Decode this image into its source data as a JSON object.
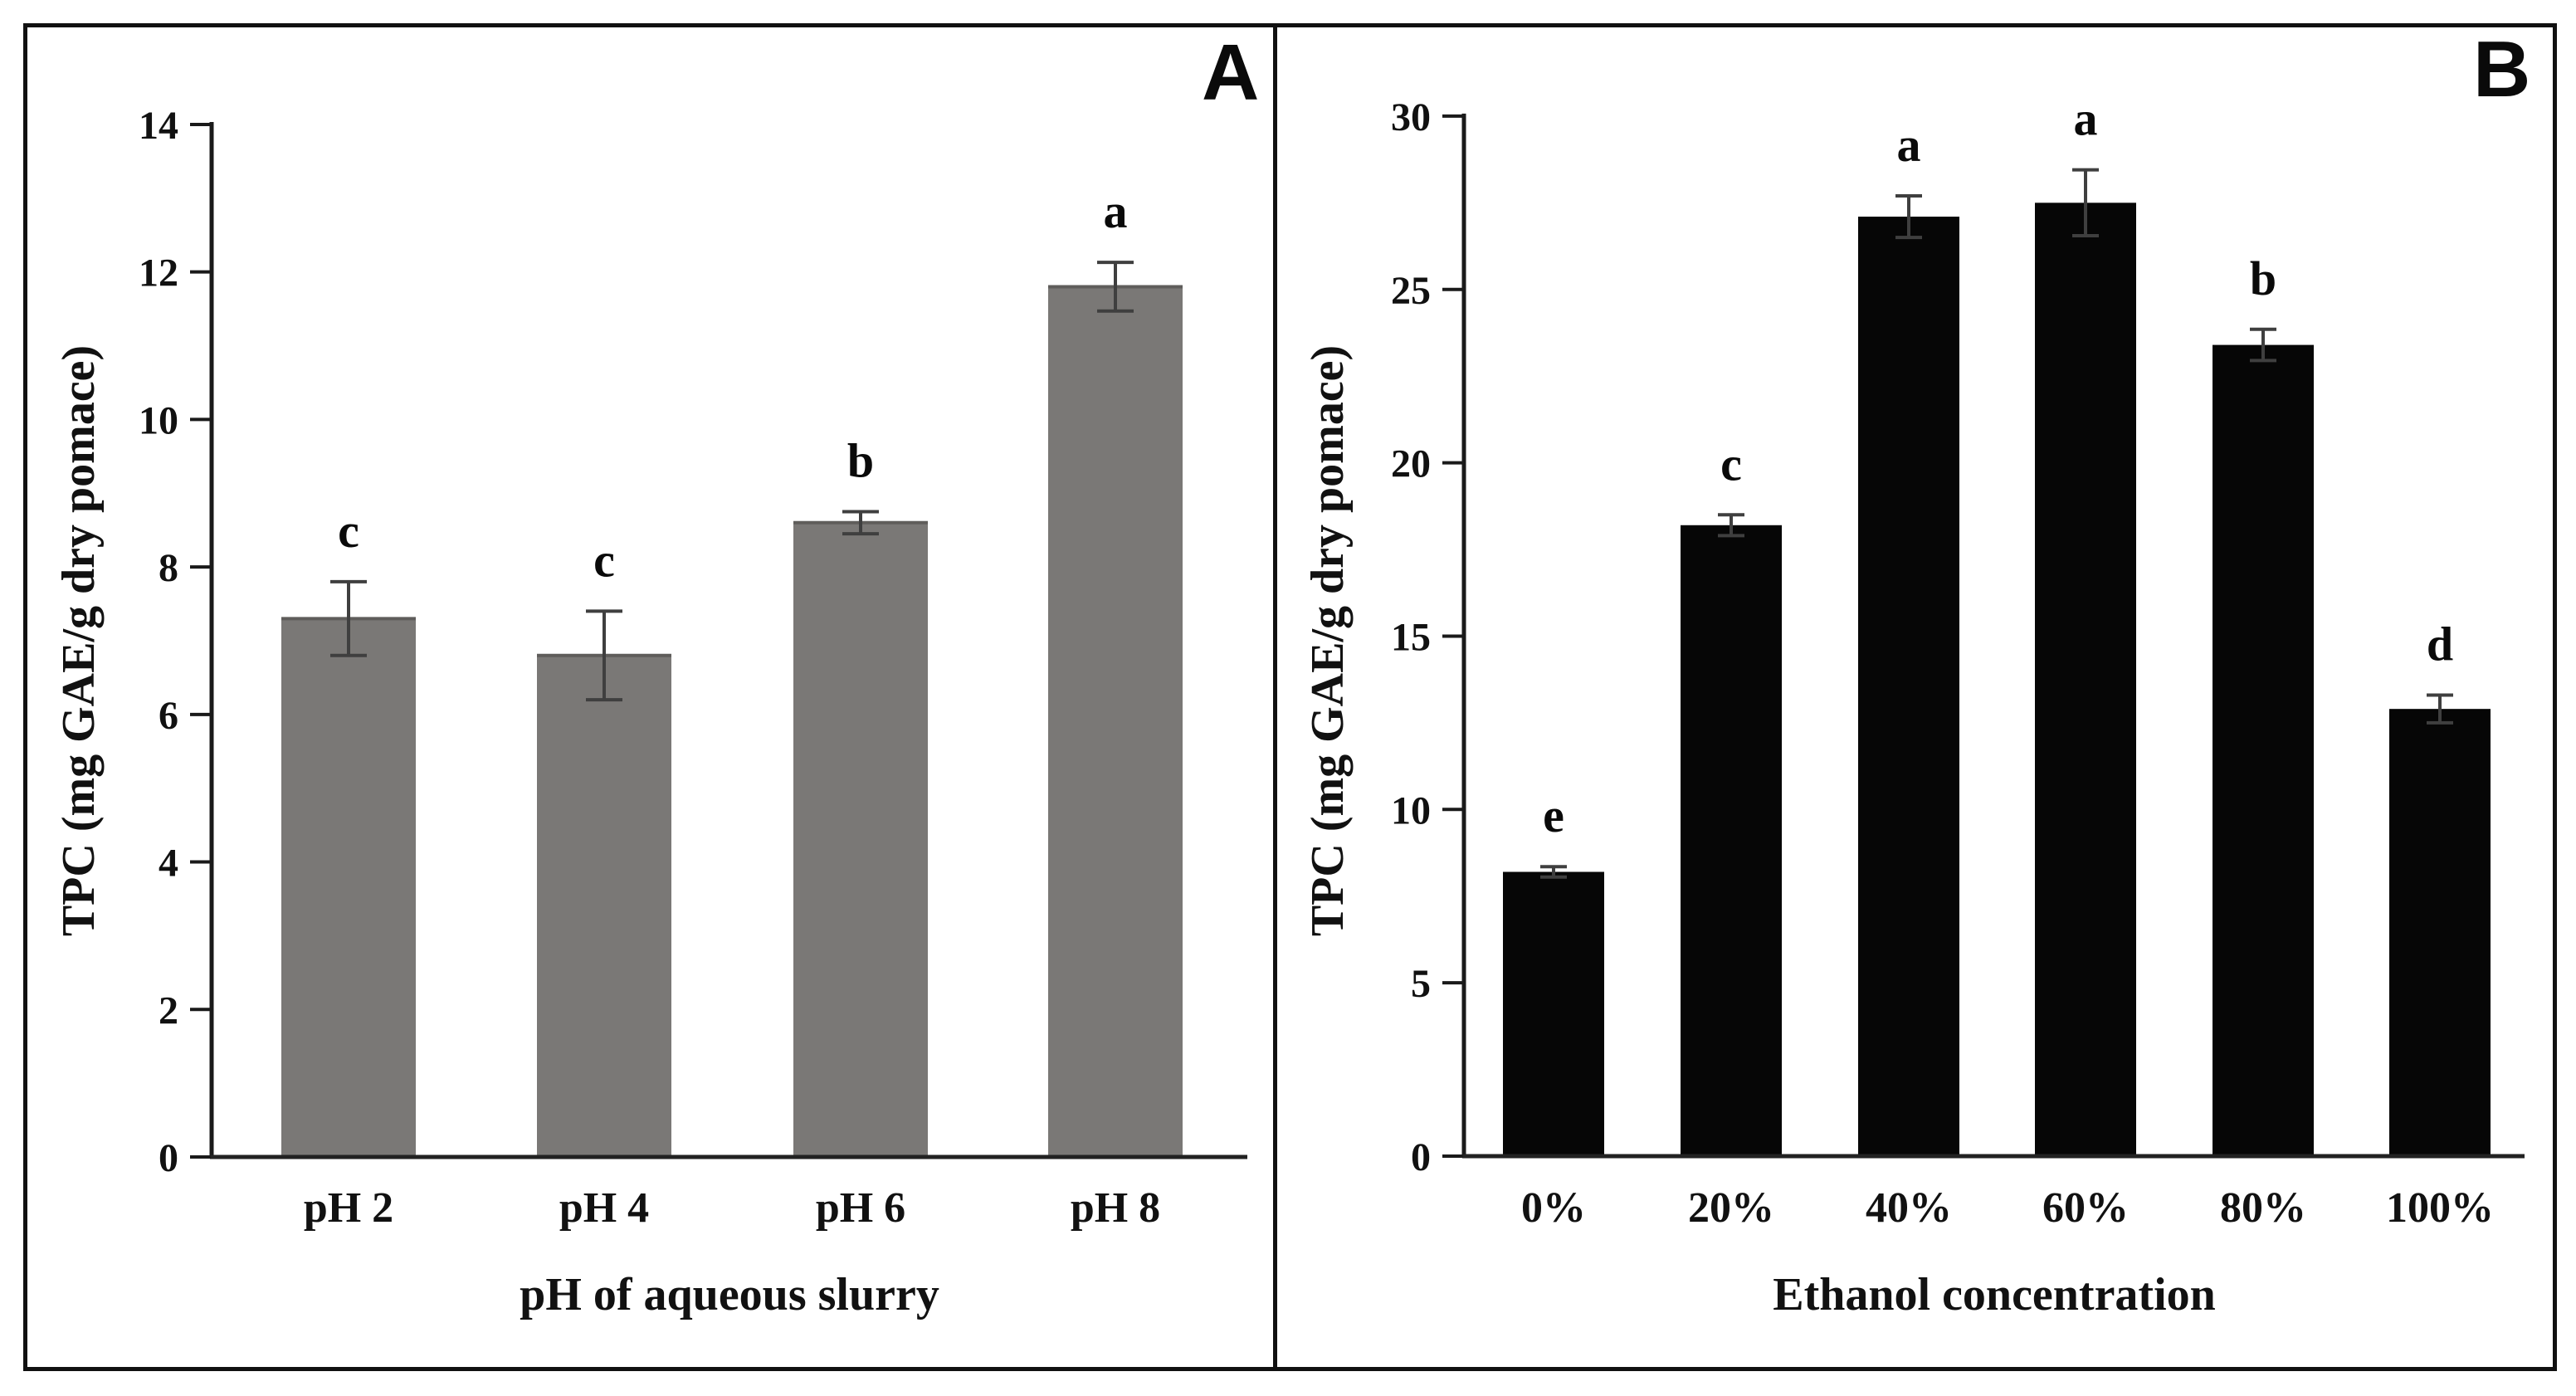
{
  "figure": {
    "background_color": "#ffffff",
    "frame_color": "#111111",
    "has_panel_divider": true
  },
  "chart_data": [
    {
      "id": "A",
      "type": "bar",
      "panel_label": "A",
      "categories": [
        "pH 2",
        "pH 4",
        "pH 6",
        "pH 8"
      ],
      "values": [
        7.3,
        6.8,
        8.6,
        11.8
      ],
      "errors": [
        0.5,
        0.6,
        0.15,
        0.33
      ],
      "sig_letters": [
        "c",
        "c",
        "b",
        "a"
      ],
      "xlabel": "pH of aqueous slurry",
      "ylabel": "TPC (mg GAE/g dry pomace)",
      "ylim": [
        0,
        14
      ],
      "yticks": [
        0,
        2,
        4,
        6,
        8,
        10,
        12,
        14
      ],
      "grid": false,
      "legend": null,
      "bar_color": "#7a7876",
      "bar_top_edge_color": "#5f5d5b",
      "error_bar_color": "#3f3f3f",
      "axis_color": "#1a1a1a"
    },
    {
      "id": "B",
      "type": "bar",
      "panel_label": "B",
      "categories": [
        "0%",
        "20%",
        "40%",
        "60%",
        "80%",
        "100%"
      ],
      "values": [
        8.2,
        18.2,
        27.1,
        27.5,
        23.4,
        12.9
      ],
      "errors": [
        0.15,
        0.3,
        0.6,
        0.95,
        0.45,
        0.4
      ],
      "sig_letters": [
        "e",
        "c",
        "a",
        "a",
        "b",
        "d"
      ],
      "xlabel": "Ethanol concentration",
      "ylabel": "TPC (mg GAE/g dry pomace)",
      "ylim": [
        0,
        30
      ],
      "yticks": [
        0,
        5,
        10,
        15,
        20,
        25,
        30
      ],
      "grid": false,
      "legend": null,
      "bar_color": "#060606",
      "bar_top_edge_color": null,
      "error_bar_color": "#3f3f3f",
      "axis_color": "#1a1a1a"
    }
  ]
}
